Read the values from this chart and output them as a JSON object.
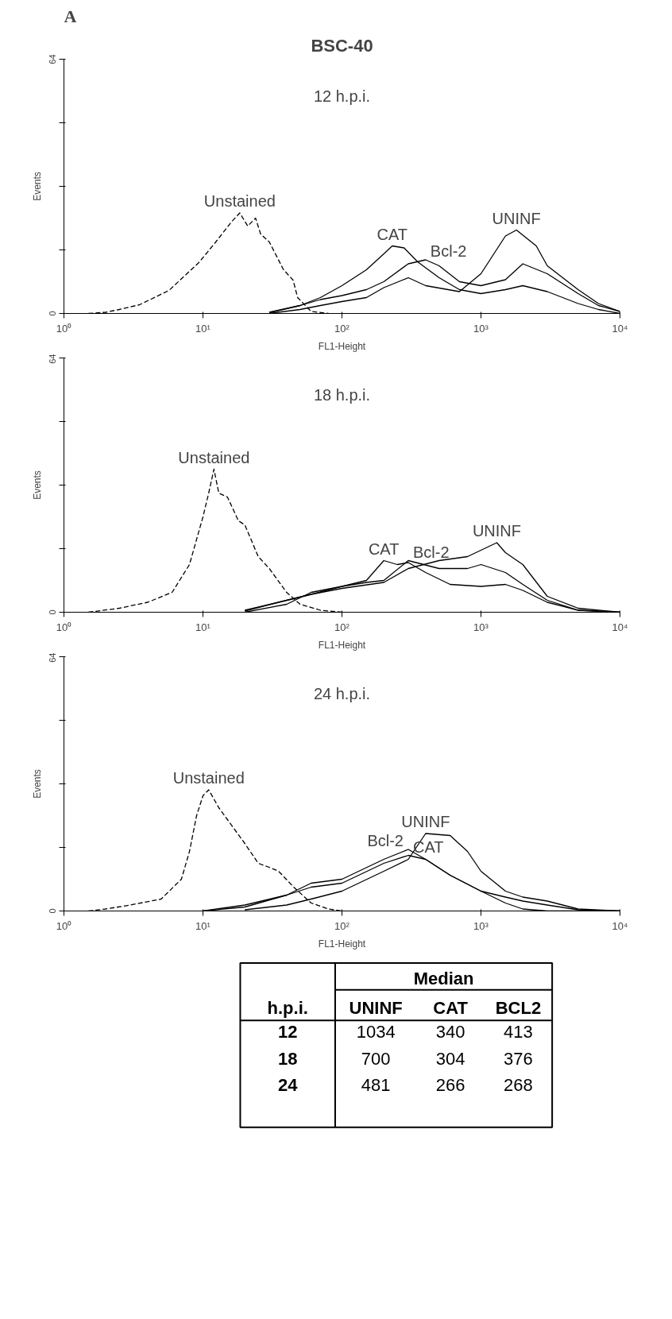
{
  "chart_data": [
    {
      "type": "line",
      "title": "12 h.p.i.",
      "annotations": [
        "A",
        "BSC-40"
      ],
      "xlabel": "FL1-Height",
      "ylabel": "Events",
      "log": "x",
      "xlim": [
        1,
        10000
      ],
      "xticks": [
        {
          "value": 1,
          "label": "10⁰"
        },
        {
          "value": 10,
          "label": "10¹"
        },
        {
          "value": 100,
          "label": "10²"
        },
        {
          "value": 1000,
          "label": "10³"
        },
        {
          "value": 10000,
          "label": "10⁴"
        }
      ],
      "ylim": [
        0,
        64
      ],
      "yticks": [
        0,
        {
          "value": 16,
          "label": null
        },
        {
          "value": 32,
          "label": null
        },
        {
          "value": 48,
          "label": null
        },
        64
      ],
      "series": [
        {
          "name": "Unstained",
          "color": "#000000",
          "line_style": "dashed",
          "x": [
            1.5,
            2,
            2.5,
            3.5,
            5.7,
            9.4,
            12.5,
            16,
            18.4,
            21,
            23.9,
            26,
            30,
            38,
            44.5,
            48,
            60,
            80
          ],
          "values": [
            0,
            0.3,
            1,
            2.2,
            5.8,
            12.9,
            18.2,
            23,
            25.3,
            22,
            24,
            20,
            18,
            11,
            8.4,
            4,
            0.5,
            0
          ]
        },
        {
          "name": "CAT",
          "color": "#000000",
          "x": [
            30,
            50,
            70,
            100,
            150,
            200,
            230,
            280,
            350,
            500,
            700,
            1000,
            1500,
            2000,
            3000,
            5000,
            7000,
            10000
          ],
          "values": [
            0.3,
            2,
            4,
            7,
            11,
            15,
            17,
            16.5,
            13,
            9,
            6,
            5,
            6,
            7,
            5.5,
            2.5,
            1,
            0
          ]
        },
        {
          "name": "Bcl-2",
          "color": "#000000",
          "x": [
            30,
            50,
            70,
            100,
            150,
            200,
            300,
            400,
            500,
            700,
            1000,
            1500,
            2000,
            3000,
            5000,
            7000,
            10000
          ],
          "values": [
            0.2,
            2,
            3.5,
            4.5,
            6,
            8,
            12.5,
            13.5,
            12,
            8,
            7,
            8.5,
            12.5,
            10,
            5,
            2,
            0.5
          ]
        },
        {
          "name": "UNINF",
          "color": "#000000",
          "x": [
            30,
            50,
            70,
            100,
            150,
            200,
            300,
            400,
            700,
            1000,
            1500,
            1800,
            2500,
            3000,
            5000,
            7000,
            10000
          ],
          "values": [
            0,
            1,
            2,
            3,
            4,
            6.5,
            9,
            7,
            5.5,
            10,
            19.5,
            21,
            17,
            12,
            6,
            2.5,
            0.5
          ]
        }
      ]
    },
    {
      "type": "line",
      "title": "18 h.p.i.",
      "xlabel": "FL1-Height",
      "ylabel": "Events",
      "log": "x",
      "xlim": [
        1,
        10000
      ],
      "xticks": [
        {
          "value": 1,
          "label": "10⁰"
        },
        {
          "value": 10,
          "label": "10¹"
        },
        {
          "value": 100,
          "label": "10²"
        },
        {
          "value": 1000,
          "label": "10³"
        },
        {
          "value": 10000,
          "label": "10⁴"
        }
      ],
      "ylim": [
        0,
        64
      ],
      "yticks": [
        0,
        {
          "value": 16,
          "label": null
        },
        {
          "value": 32,
          "label": null
        },
        {
          "value": 48,
          "label": null
        },
        64
      ],
      "series": [
        {
          "name": "Unstained",
          "color": "#000000",
          "line_style": "dashed",
          "x": [
            1.5,
            2.5,
            4,
            6,
            8,
            10,
            11,
            12,
            13,
            15,
            18,
            20,
            25,
            30,
            40,
            50,
            70,
            100
          ],
          "values": [
            0,
            1,
            2.5,
            5,
            12,
            24,
            30,
            36,
            30,
            29,
            23,
            22,
            14,
            11,
            5,
            2,
            0.5,
            0
          ]
        },
        {
          "name": "CAT",
          "color": "#000000",
          "x": [
            20,
            40,
            60,
            100,
            150,
            200,
            250,
            300,
            400,
            600,
            1000,
            1500,
            2000,
            3000,
            5000,
            10000
          ],
          "values": [
            0,
            2,
            5,
            6.5,
            8,
            13,
            12,
            12.5,
            10,
            7,
            6.5,
            7,
            5.5,
            2.5,
            0.5,
            0
          ]
        },
        {
          "name": "Bcl-2",
          "color": "#000000",
          "x": [
            20,
            40,
            60,
            100,
            150,
            200,
            300,
            500,
            800,
            1000,
            1500,
            2000,
            3000,
            5000,
            10000
          ],
          "values": [
            0.5,
            3,
            4.5,
            6.5,
            7.5,
            8,
            13,
            11,
            11,
            12,
            10,
            7,
            3,
            0.5,
            0
          ]
        },
        {
          "name": "UNINF",
          "color": "#000000",
          "x": [
            20,
            40,
            60,
            100,
            200,
            300,
            500,
            800,
            1300,
            1500,
            2000,
            3000,
            5000,
            10000
          ],
          "values": [
            0.3,
            3,
            4.5,
            6,
            7.5,
            11,
            13,
            14,
            17.5,
            15,
            12,
            4,
            1,
            0
          ]
        }
      ]
    },
    {
      "type": "line",
      "title": "24 h.p.i.",
      "xlabel": "FL1-Height",
      "ylabel": "Events",
      "log": "x",
      "xlim": [
        1,
        10000
      ],
      "xticks": [
        {
          "value": 1,
          "label": "10⁰"
        },
        {
          "value": 10,
          "label": "10¹"
        },
        {
          "value": 100,
          "label": "10²"
        },
        {
          "value": 1000,
          "label": "10³"
        },
        {
          "value": 10000,
          "label": "10⁴"
        }
      ],
      "ylim": [
        0,
        64
      ],
      "yticks": [
        0,
        {
          "value": 16,
          "label": null
        },
        {
          "value": 32,
          "label": null
        },
        {
          "value": 48,
          "label": null
        },
        64
      ],
      "series": [
        {
          "name": "Unstained",
          "color": "#000000",
          "line_style": "dashed",
          "x": [
            1.5,
            2,
            3,
            5,
            7,
            8,
            9,
            10,
            11,
            13,
            15,
            20,
            25,
            30,
            35,
            45,
            60,
            80,
            100
          ],
          "values": [
            0,
            0.5,
            1.5,
            3,
            8,
            15,
            24,
            29,
            30.5,
            26,
            23,
            17,
            12,
            11,
            10,
            6,
            2,
            0.5,
            0
          ]
        },
        {
          "name": "CAT",
          "color": "#000000",
          "x": [
            10,
            20,
            40,
            60,
            100,
            200,
            300,
            400,
            600,
            1000,
            1500,
            2000,
            3000,
            5000,
            10000
          ],
          "values": [
            0,
            1,
            4,
            6,
            7,
            12,
            14,
            13,
            9,
            5,
            3.5,
            2.5,
            1.5,
            0.3,
            0
          ]
        },
        {
          "name": "Bcl-2",
          "color": "#000000",
          "x": [
            10,
            20,
            40,
            60,
            100,
            200,
            300,
            400,
            600,
            1000,
            1500,
            2000,
            3000,
            10000
          ],
          "values": [
            0,
            1.5,
            4,
            7,
            8,
            13,
            15.5,
            13,
            9,
            5,
            2,
            0.5,
            0,
            0
          ]
        },
        {
          "name": "UNINF",
          "color": "#000000",
          "x": [
            20,
            40,
            60,
            100,
            200,
            300,
            400,
            600,
            800,
            1000,
            1500,
            2000,
            3000,
            5000,
            10000
          ],
          "values": [
            0.3,
            1.5,
            3,
            5,
            10,
            13,
            19.5,
            19,
            15,
            10,
            5,
            3.5,
            2.5,
            0.5,
            0
          ]
        }
      ]
    },
    {
      "type": "other",
      "annotations": [
        "Median",
        "h.p.i.",
        "UNINF",
        "CAT",
        "BCL2",
        "12",
        "1034",
        "340",
        "413",
        "18",
        "700",
        "304",
        "376",
        "24",
        "481",
        "266",
        "268"
      ]
    }
  ]
}
